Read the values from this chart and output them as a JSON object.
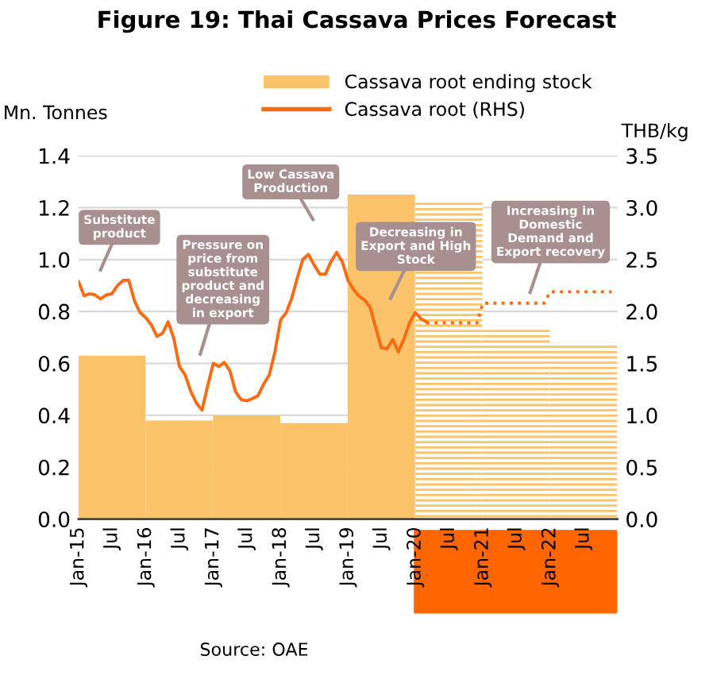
{
  "chart_data": {
    "type": "bar",
    "title": "Figure 19: Thai Cassava Prices Forecast",
    "ylabel": "Mn. Tonnes",
    "y2label": "THB/kg",
    "legend": "top",
    "grid": "y",
    "xlim": [
      "2015-01",
      "2023-01"
    ],
    "xticks": [
      {
        "value": "2015-01",
        "label": "Jan-15"
      },
      {
        "value": "2015-07",
        "label": "Jul"
      },
      {
        "value": "2016-01",
        "label": "Jan-16"
      },
      {
        "value": "2016-07",
        "label": "Jul"
      },
      {
        "value": "2017-01",
        "label": "Jan-17"
      },
      {
        "value": "2017-07",
        "label": "Jul"
      },
      {
        "value": "2018-01",
        "label": "Jan-18"
      },
      {
        "value": "2018-07",
        "label": "Jul"
      },
      {
        "value": "2019-01",
        "label": "Jan-19"
      },
      {
        "value": "2019-07",
        "label": "Jul"
      },
      {
        "value": "2020-01",
        "label": "Jan-20"
      },
      {
        "value": "2020-07",
        "label": "Jul"
      },
      {
        "value": "2021-01",
        "label": "Jan-21"
      },
      {
        "value": "2021-07",
        "label": "Jul"
      },
      {
        "value": "2022-01",
        "label": "Jan-22"
      },
      {
        "value": "2022-07",
        "label": "Jul"
      }
    ],
    "ylim": [
      0,
      1.4
    ],
    "yticks": [
      {
        "value": 0,
        "label": "0.0"
      },
      {
        "value": 0.2,
        "label": "0.2"
      },
      {
        "value": 0.4,
        "label": "0.4"
      },
      {
        "value": 0.6,
        "label": "0.6"
      },
      {
        "value": 0.8,
        "label": "0.8"
      },
      {
        "value": 1.0,
        "label": "1.0"
      },
      {
        "value": 1.2,
        "label": "1.2"
      },
      {
        "value": 1.4,
        "label": "1.4"
      }
    ],
    "y2lim": [
      0,
      3.5
    ],
    "y2ticks": [
      {
        "value": 0,
        "label": "0.0"
      },
      {
        "value": 0.5,
        "label": "0.5"
      },
      {
        "value": 1.0,
        "label": "1.0"
      },
      {
        "value": 1.5,
        "label": "1.5"
      },
      {
        "value": 2.0,
        "label": "2.0"
      },
      {
        "value": 2.5,
        "label": "2.5"
      },
      {
        "value": 3.0,
        "label": "3.0"
      },
      {
        "value": 3.5,
        "label": "3.5"
      }
    ],
    "series": [
      {
        "name": "Cassava root ending stock",
        "color": "#fcc36b",
        "x": [
          "2015-07",
          "2016-07",
          "2017-07",
          "2018-07",
          "2019-07"
        ],
        "values": [
          0.63,
          0.38,
          0.4,
          0.37,
          1.25
        ]
      },
      {
        "name": "Cassava root (RHS)",
        "type": "line",
        "axis": "y2",
        "color": "#ff6a10",
        "line_style": "solid",
        "x": [
          "2015-01",
          "2015-02",
          "2015-03",
          "2015-04",
          "2015-05",
          "2015-06",
          "2015-07",
          "2015-08",
          "2015-09",
          "2015-10",
          "2015-11",
          "2015-12",
          "2016-01",
          "2016-02",
          "2016-03",
          "2016-04",
          "2016-05",
          "2016-06",
          "2016-07",
          "2016-08",
          "2016-09",
          "2016-10",
          "2016-11",
          "2016-12",
          "2017-01",
          "2017-02",
          "2017-03",
          "2017-04",
          "2017-05",
          "2017-06",
          "2017-07",
          "2017-08",
          "2017-09",
          "2017-10",
          "2017-11",
          "2017-12",
          "2018-01",
          "2018-02",
          "2018-03",
          "2018-04",
          "2018-05",
          "2018-06",
          "2018-07",
          "2018-08",
          "2018-09",
          "2018-10",
          "2018-11",
          "2018-12",
          "2019-01",
          "2019-02",
          "2019-03",
          "2019-04",
          "2019-05",
          "2019-06",
          "2019-07",
          "2019-08",
          "2019-09",
          "2019-10",
          "2019-11",
          "2019-12",
          "2020-01",
          "2020-02",
          "2020-03"
        ],
        "values": [
          2.29,
          2.15,
          2.17,
          2.16,
          2.12,
          2.16,
          2.17,
          2.25,
          2.3,
          2.3,
          2.1,
          1.99,
          1.94,
          1.87,
          1.76,
          1.79,
          1.9,
          1.74,
          1.47,
          1.39,
          1.23,
          1.12,
          1.05,
          1.28,
          1.5,
          1.47,
          1.51,
          1.43,
          1.23,
          1.15,
          1.14,
          1.16,
          1.19,
          1.3,
          1.39,
          1.61,
          1.92,
          1.99,
          2.12,
          2.32,
          2.5,
          2.55,
          2.45,
          2.36,
          2.36,
          2.48,
          2.57,
          2.48,
          2.3,
          2.21,
          2.15,
          2.11,
          2.04,
          1.84,
          1.65,
          1.64,
          1.73,
          1.61,
          1.74,
          1.89,
          1.99,
          1.93,
          1.9
        ]
      },
      {
        "color": "#fcc36b",
        "x": [
          "2020-07",
          "2021-07",
          "2022-07"
        ],
        "values": [
          1.22,
          0.73,
          0.68
        ]
      },
      {
        "type": "line",
        "axis": "y2",
        "color": "#ff6a10",
        "line_style": "dotted",
        "x": [
          "2020-03",
          "2020-12",
          "2021-01",
          "2021-12",
          "2022-01",
          "2022-12"
        ],
        "values": [
          1.89,
          1.89,
          2.08,
          2.08,
          2.19,
          2.19
        ]
      }
    ],
    "annotations": [
      "Substitute\nproduct",
      "Pressure on\nprice from\nsubstitute\nproduct and\ndecreasing\nin export",
      "Low Cassava\nProduction",
      "Decreasing in\nExport and High\nStock",
      "Increasing in\nDomestic\nDemand and\nExport recovery",
      "Source: OAE"
    ]
  }
}
